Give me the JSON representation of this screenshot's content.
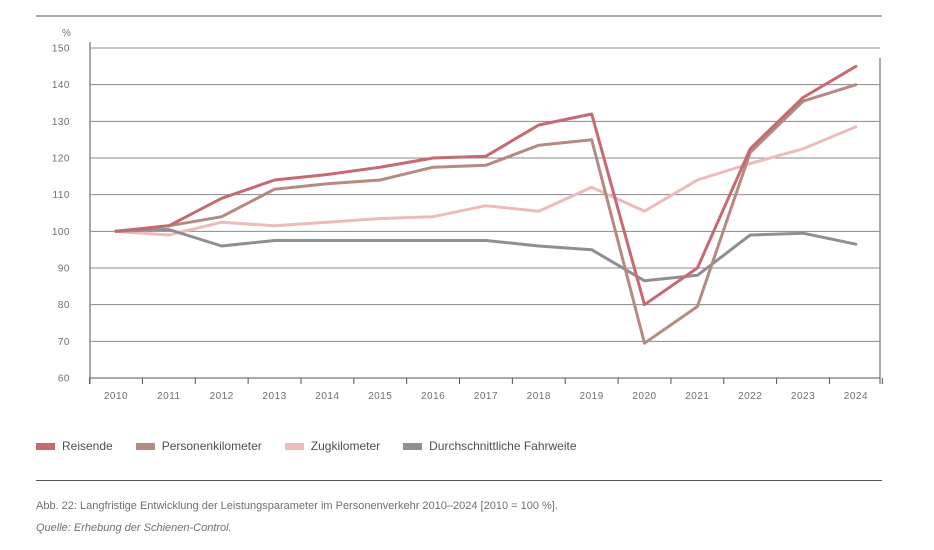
{
  "chart_data": {
    "type": "line",
    "ylabel": "%",
    "ylim": [
      60,
      150
    ],
    "yticks": [
      60,
      70,
      80,
      90,
      100,
      110,
      120,
      130,
      140,
      150
    ],
    "categories": [
      "2010",
      "2011",
      "2012",
      "2013",
      "2014",
      "2015",
      "2016",
      "2017",
      "2018",
      "2019",
      "2020",
      "2021",
      "2022",
      "2023",
      "2024"
    ],
    "grid": true,
    "series": [
      {
        "name": "Reisende",
        "color": "#c66a72",
        "values": [
          100,
          101.5,
          109,
          114,
          115.5,
          117.5,
          120,
          120.5,
          129,
          132,
          80,
          90,
          122.5,
          136.5,
          145
        ]
      },
      {
        "name": "Personenkilometer",
        "color": "#b48a82",
        "values": [
          100,
          101.5,
          104,
          111.5,
          113,
          114,
          117.5,
          118,
          123.5,
          125,
          69.5,
          79.5,
          121.5,
          135.5,
          140
        ]
      },
      {
        "name": "Zugkilometer",
        "color": "#ecbcbc",
        "values": [
          100,
          99,
          102.5,
          101.5,
          102.5,
          103.5,
          104,
          107,
          105.5,
          112,
          105.5,
          114,
          118.5,
          122.5,
          128.5
        ]
      },
      {
        "name": "Durchschnittliche Fahrweite",
        "color": "#8e8e94",
        "values": [
          100,
          100.5,
          96,
          97.5,
          97.5,
          97.5,
          97.5,
          97.5,
          96,
          95,
          86.5,
          88,
          99,
          99.5,
          96.5
        ]
      }
    ]
  },
  "caption": "Abb. 22: Langfristige Entwicklung der Leistungsparameter im Personenverkehr 2010–2024 [2010 = 100 %].",
  "source": "Quelle: Erhebung der Schienen-Control."
}
